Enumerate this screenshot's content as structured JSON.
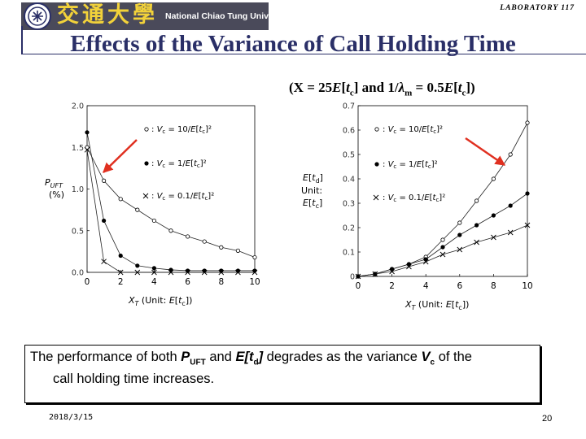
{
  "header": {
    "univ_cn": "交通大學",
    "univ_en": "National Chiao Tung University",
    "lab": "LABORATORY 117",
    "title": "Effects of the Variance of Call Holding Time",
    "condition": "(X = 25E[tc] and 1/λm = 0.5E[tc])"
  },
  "colors": {
    "title": "#2a2f67",
    "banner": "#4a4a5a",
    "banner_text": "#f2d23a",
    "arrow": "#e03020"
  },
  "chart_data": [
    {
      "type": "line",
      "xlabel": "X_T (Unit: E[t_c])",
      "ylabel": "P_UFT (%)",
      "xlim": [
        0,
        10
      ],
      "ylim": [
        0,
        2.0
      ],
      "xticks": [
        "0",
        "2",
        "4",
        "6",
        "8",
        "10"
      ],
      "yticks": [
        "0.0",
        "0.5",
        "1.0",
        "1.5",
        "2.0"
      ],
      "legend": [
        "○ : Vc = 10/E[tc]²",
        "● : Vc = 1/E[tc]²",
        "× : Vc = 0.1/E[tc]²"
      ],
      "legend_position": "upper-right",
      "x": [
        0,
        1,
        2,
        3,
        4,
        5,
        6,
        7,
        8,
        9,
        10
      ],
      "series": [
        {
          "name": "○ : Vc = 10/E[tc]²",
          "marker": "open-circle",
          "values": [
            1.5,
            1.1,
            0.88,
            0.75,
            0.62,
            0.5,
            0.43,
            0.37,
            0.3,
            0.26,
            0.18
          ]
        },
        {
          "name": "● : Vc = 1/E[tc]²",
          "marker": "filled-circle",
          "values": [
            1.68,
            0.62,
            0.2,
            0.08,
            0.05,
            0.03,
            0.02,
            0.02,
            0.02,
            0.02,
            0.02
          ]
        },
        {
          "name": "× : Vc = 0.1/E[tc]²",
          "marker": "cross",
          "values": [
            1.47,
            0.13,
            0.0,
            0.0,
            0.0,
            0.0,
            0.0,
            0.0,
            0.0,
            0.0,
            0.0
          ]
        }
      ]
    },
    {
      "type": "line",
      "xlabel": "X_T (Unit: E[t_c])",
      "ylabel": "E[td] Unit: E[tc]",
      "xlim": [
        0,
        10
      ],
      "ylim": [
        0,
        0.7
      ],
      "xticks": [
        "0",
        "2",
        "4",
        "6",
        "8",
        "10"
      ],
      "yticks": [
        "0",
        "0.1",
        "0.2",
        "0.3",
        "0.4",
        "0.5",
        "0.6",
        "0.7"
      ],
      "legend": [
        "○ : Vc = 10/E[tc]²",
        "● : Vc = 1/E[tc]²",
        "× : Vc = 0.1/E[tc]²"
      ],
      "legend_position": "upper-left",
      "x": [
        0,
        1,
        2,
        3,
        4,
        5,
        6,
        7,
        8,
        9,
        10
      ],
      "series": [
        {
          "name": "○ : Vc = 10/E[tc]²",
          "marker": "open-circle",
          "values": [
            0,
            0.01,
            0.03,
            0.05,
            0.08,
            0.15,
            0.22,
            0.31,
            0.4,
            0.5,
            0.63
          ]
        },
        {
          "name": "● : Vc = 1/E[tc]²",
          "marker": "filled-circle",
          "values": [
            0,
            0.01,
            0.03,
            0.05,
            0.07,
            0.12,
            0.17,
            0.21,
            0.25,
            0.29,
            0.34
          ]
        },
        {
          "name": "× : Vc = 0.1/E[tc]²",
          "marker": "cross",
          "values": [
            0,
            0.01,
            0.02,
            0.04,
            0.06,
            0.09,
            0.11,
            0.14,
            0.16,
            0.18,
            0.21
          ]
        }
      ]
    }
  ],
  "caption": {
    "part1": "The performance of both ",
    "puft_main": "P",
    "puft_sub": "UFT",
    "part2": " and ",
    "etd_main": "E[t",
    "etd_sub": "d",
    "etd_end": "]",
    "part3": " degrades as the variance ",
    "vc_main": "V",
    "vc_sub": "c",
    "part4": " of the",
    "line2": "call holding time increases."
  },
  "footer": {
    "date": "2018/3/15",
    "page": "20"
  }
}
